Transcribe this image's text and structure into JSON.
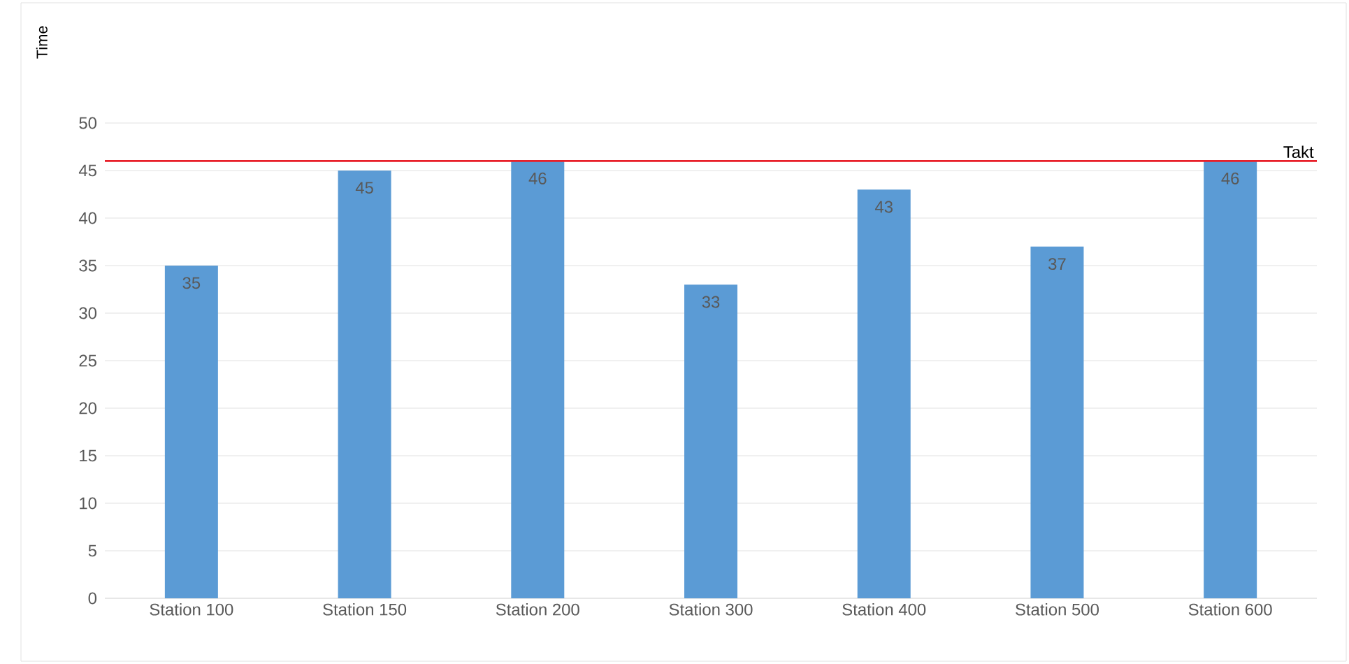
{
  "chart_data": {
    "type": "bar",
    "ylabel": "Time",
    "categories": [
      "Station 100",
      "Station 150",
      "Station 200",
      "Station 300",
      "Station 400",
      "Station 500",
      "Station 600"
    ],
    "values": [
      35,
      45,
      46,
      33,
      43,
      37,
      46
    ],
    "color": "#5b9bd5",
    "data_labels": true,
    "ylim": [
      0,
      50
    ],
    "yticks": [
      0,
      5,
      10,
      15,
      20,
      25,
      30,
      35,
      40,
      45,
      50
    ],
    "grid": "y",
    "ref_lines": [
      {
        "axis": "y",
        "value": 46,
        "label": "Takt",
        "color": "#e8202a"
      }
    ]
  }
}
